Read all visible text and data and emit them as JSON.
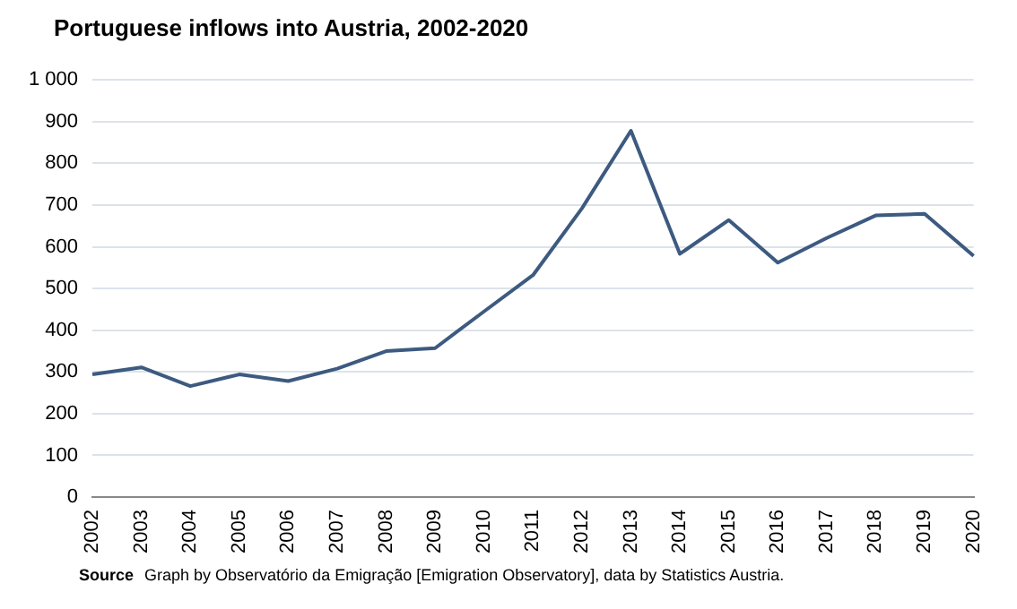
{
  "chart_data": {
    "type": "line",
    "title": "Portuguese inflows into Austria, 2002-2020",
    "categories": [
      "2002",
      "2003",
      "2004",
      "2005",
      "2006",
      "2007",
      "2008",
      "2009",
      "2010",
      "2011",
      "2012",
      "2013",
      "2014",
      "2015",
      "2016",
      "2017",
      "2018",
      "2019",
      "2020"
    ],
    "series": [
      {
        "color": "#3d5a80",
        "values": [
          294,
          311,
          266,
          294,
          278,
          308,
          350,
          357,
          445,
          532,
          692,
          878,
          583,
          664,
          562,
          621,
          675,
          679,
          578
        ]
      }
    ],
    "ylim": [
      0,
      1000
    ],
    "yticks": [
      0,
      100,
      200,
      300,
      400,
      500,
      600,
      700,
      800,
      900,
      {
        "value": 1000,
        "label": "1 000"
      }
    ],
    "grid": "y",
    "legend": false,
    "marker": "none",
    "line_style": "solid",
    "annotations": [
      "Source",
      "Graph by Observatório da Emigração [Emigration Observatory], data by Statistics Austria."
    ]
  }
}
